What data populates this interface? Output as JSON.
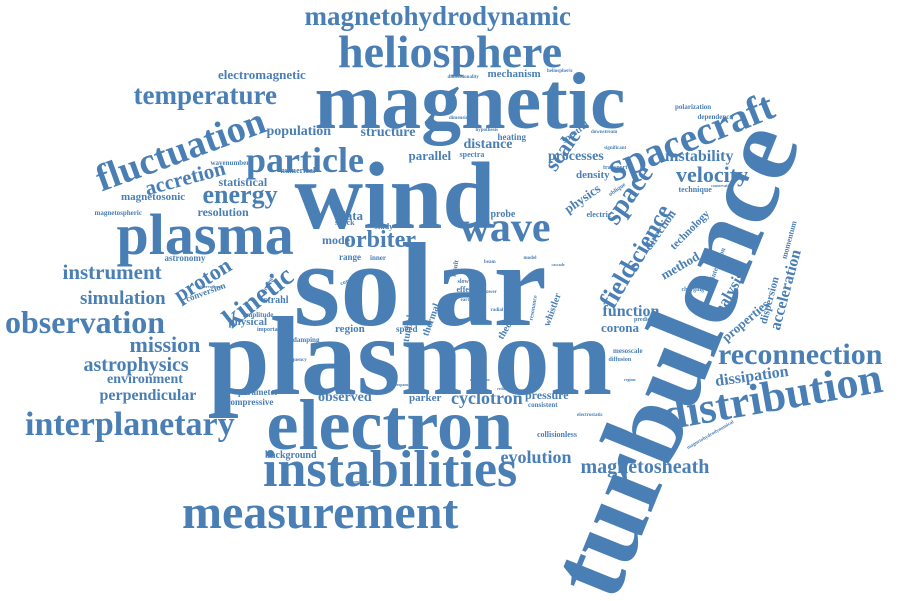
{
  "colors": {
    "word": "#4a7fb5",
    "background": "#ffffff"
  },
  "words": [
    {
      "id": "solar",
      "text": "solar",
      "weight": 120
    },
    {
      "id": "plasmon",
      "text": "plasmon",
      "weight": 112
    },
    {
      "id": "turbulence",
      "text": "turbulence",
      "weight": 110
    },
    {
      "id": "wind",
      "text": "wind",
      "weight": 95
    },
    {
      "id": "magnetic",
      "text": "magnetic",
      "weight": 80
    },
    {
      "id": "electron",
      "text": "electron",
      "weight": 72
    },
    {
      "id": "plasma",
      "text": "plasma",
      "weight": 58
    },
    {
      "id": "instabilities",
      "text": "instabilities",
      "weight": 52
    },
    {
      "id": "measurement",
      "text": "measurement",
      "weight": 48
    },
    {
      "id": "heliosphere",
      "text": "heliosphere",
      "weight": 46
    },
    {
      "id": "distribution",
      "text": "distribution",
      "weight": 44
    },
    {
      "id": "wave",
      "text": "wave",
      "weight": 42
    },
    {
      "id": "spacecraft",
      "text": "spacecraft",
      "weight": 40
    },
    {
      "id": "fluctuation",
      "text": "fluctuation",
      "weight": 38
    },
    {
      "id": "particle",
      "text": "particle",
      "weight": 36
    },
    {
      "id": "interplanetary",
      "text": "interplanetary",
      "weight": 34
    },
    {
      "id": "observation",
      "text": "observation",
      "weight": 32
    },
    {
      "id": "reconnection",
      "text": "reconnection",
      "weight": 30
    },
    {
      "id": "temperature",
      "text": "temperature",
      "weight": 28
    },
    {
      "id": "magnetohydrodynamic",
      "text": "magnetohydrodynamic",
      "weight": 28
    },
    {
      "id": "kinetic",
      "text": "kinetic",
      "weight": 28
    },
    {
      "id": "energy",
      "text": "energy",
      "weight": 26
    },
    {
      "id": "space",
      "text": "space",
      "weight": 26
    },
    {
      "id": "field",
      "text": "field",
      "weight": 26
    },
    {
      "id": "science",
      "text": "science",
      "weight": 24
    },
    {
      "id": "proton",
      "text": "proton",
      "weight": 24
    },
    {
      "id": "orbiter",
      "text": "orbiter",
      "weight": 24
    },
    {
      "id": "accretion",
      "text": "accretion",
      "weight": 22
    },
    {
      "id": "velocity",
      "text": "velocity",
      "weight": 22
    },
    {
      "id": "scale",
      "text": "scale",
      "weight": 22
    },
    {
      "id": "instrument",
      "text": "instrument",
      "weight": 22
    },
    {
      "id": "mission",
      "text": "mission",
      "weight": 22
    },
    {
      "id": "magnetosheath",
      "text": "magnetosheath",
      "weight": 20
    },
    {
      "id": "astrophysics",
      "text": "astrophysics",
      "weight": 20
    },
    {
      "id": "simulation",
      "text": "simulation",
      "weight": 20
    },
    {
      "id": "cyclotron",
      "text": "cyclotron",
      "weight": 18
    },
    {
      "id": "evolution",
      "text": "evolution",
      "weight": 18
    },
    {
      "id": "instability",
      "text": "instability",
      "weight": 16
    },
    {
      "id": "function",
      "text": "function",
      "weight": 16
    },
    {
      "id": "acceleration",
      "text": "acceleration",
      "weight": 16
    },
    {
      "id": "analysis",
      "text": "analysis",
      "weight": 16
    },
    {
      "id": "dissipation",
      "text": "dissipation",
      "weight": 16
    },
    {
      "id": "perpendicular",
      "text": "perpendicular",
      "weight": 16
    },
    {
      "id": "environment",
      "text": "environment",
      "weight": 15
    },
    {
      "id": "electromagnetic",
      "text": "electromagnetic",
      "weight": 14
    },
    {
      "id": "population",
      "text": "population",
      "weight": 14
    },
    {
      "id": "structure",
      "text": "structure",
      "weight": 14
    },
    {
      "id": "distance",
      "text": "distance",
      "weight": 14
    },
    {
      "id": "processes",
      "text": "processes",
      "weight": 14
    },
    {
      "id": "observed",
      "text": "observed",
      "weight": 14
    },
    {
      "id": "statistical",
      "text": "statistical",
      "weight": 13
    },
    {
      "id": "resolution",
      "text": "resolution",
      "weight": 13
    },
    {
      "id": "magnetosonic",
      "text": "magnetosonic",
      "weight": 12
    },
    {
      "id": "parallel",
      "text": "parallel",
      "weight": 13
    },
    {
      "id": "physics",
      "text": "physics",
      "weight": 13
    },
    {
      "id": "physical",
      "text": "physical",
      "weight": 12
    },
    {
      "id": "parker",
      "text": "parker",
      "weight": 12
    },
    {
      "id": "method",
      "text": "method",
      "weight": 13
    },
    {
      "id": "direction",
      "text": "direction",
      "weight": 12
    },
    {
      "id": "technology",
      "text": "technology",
      "weight": 11
    },
    {
      "id": "properties",
      "text": "properties",
      "weight": 13
    },
    {
      "id": "corona",
      "text": "corona",
      "weight": 13
    },
    {
      "id": "data",
      "text": "data",
      "weight": 13
    },
    {
      "id": "pressure",
      "text": "pressure",
      "weight": 12
    },
    {
      "id": "mechanism",
      "text": "mechanism",
      "weight": 11
    },
    {
      "id": "density",
      "text": "density",
      "weight": 11
    },
    {
      "id": "region",
      "text": "region",
      "weight": 11
    },
    {
      "id": "mode",
      "text": "mode",
      "weight": 12
    },
    {
      "id": "heating",
      "text": "heating",
      "weight": 10
    },
    {
      "id": "spectral",
      "text": "spectral",
      "weight": 10
    },
    {
      "id": "momentum",
      "text": "momentum",
      "weight": 9
    },
    {
      "id": "background",
      "text": "background",
      "weight": 10
    },
    {
      "id": "parameter",
      "text": "parameter",
      "weight": 10
    },
    {
      "id": "compressive",
      "text": "compressive",
      "weight": 10
    },
    {
      "id": "thermal",
      "text": "thermal",
      "weight": 10
    },
    {
      "id": "turbulent",
      "text": "turbulent",
      "weight": 10
    },
    {
      "id": "whistler",
      "text": "whistler",
      "weight": 10
    },
    {
      "id": "strahl",
      "text": "strahl",
      "weight": 10
    },
    {
      "id": "collisionless",
      "text": "collisionless",
      "weight": 8
    },
    {
      "id": "mesoscale",
      "text": "mesoscale",
      "weight": 7
    },
    {
      "id": "electric",
      "text": "electric",
      "weight": 8
    },
    {
      "id": "speed",
      "text": "speed",
      "weight": 9
    },
    {
      "id": "effect",
      "text": "effect",
      "weight": 8
    },
    {
      "id": "probe",
      "text": "probe",
      "weight": 10
    },
    {
      "id": "spectra",
      "text": "spectra",
      "weight": 8
    },
    {
      "id": "astronomy",
      "text": "astronomy",
      "weight": 9
    },
    {
      "id": "conversion",
      "text": "conversion",
      "weight": 9
    },
    {
      "id": "numerical",
      "text": "numerical",
      "weight": 8
    },
    {
      "id": "technique",
      "text": "technique",
      "weight": 8
    },
    {
      "id": "dispersion",
      "text": "dispersion",
      "weight": 11
    },
    {
      "id": "interaction",
      "text": "interaction",
      "weight": 7
    },
    {
      "id": "dependence",
      "text": "dependence",
      "weight": 7
    },
    {
      "id": "polarization",
      "text": "polarization",
      "weight": 7
    },
    {
      "id": "theory",
      "text": "theory",
      "weight": 10
    },
    {
      "id": "range",
      "text": "range",
      "weight": 9
    },
    {
      "id": "shock",
      "text": "shock",
      "weight": 8
    },
    {
      "id": "study",
      "text": "study",
      "weight": 8
    },
    {
      "id": "wavenumber",
      "text": "wavenumber",
      "weight": 7
    },
    {
      "id": "amplitude",
      "text": "amplitude",
      "weight": 7
    },
    {
      "id": "damping",
      "text": "damping",
      "weight": 7
    },
    {
      "id": "consistent",
      "text": "consistent",
      "weight": 7
    },
    {
      "id": "prediction",
      "text": "prediction",
      "weight": 6
    },
    {
      "id": "diffusion",
      "text": "diffusion",
      "weight": 6
    },
    {
      "id": "charging",
      "text": "charging",
      "weight": 6
    },
    {
      "id": "important",
      "text": "important",
      "weight": 6
    },
    {
      "id": "dimensional",
      "text": "dimensional",
      "weight": 5
    },
    {
      "id": "downstream",
      "text": "downstream",
      "weight": 5
    },
    {
      "id": "heliospheric",
      "text": "heliospheric",
      "weight": 5
    },
    {
      "id": "electrostatic",
      "text": "electrostatic",
      "weight": 5
    },
    {
      "id": "frequency",
      "text": "frequency",
      "weight": 5
    },
    {
      "id": "dimensionality",
      "text": "dimensionality",
      "weight": 5
    },
    {
      "id": "hypothesis",
      "text": "hypothesis",
      "weight": 5
    },
    {
      "id": "inner",
      "text": "inner",
      "weight": 7
    },
    {
      "id": "oblique",
      "text": "oblique",
      "weight": 6
    },
    {
      "id": "transport",
      "text": "transport",
      "weight": 6
    },
    {
      "id": "earth",
      "text": "earth",
      "weight": 5
    },
    {
      "id": "power",
      "text": "power",
      "weight": 5
    },
    {
      "id": "coronal",
      "text": "coronal",
      "weight": 6
    },
    {
      "id": "magnetohydrodynamical",
      "text": "magnetohydrodynamical",
      "weight": 5
    },
    {
      "id": "significant",
      "text": "significant",
      "weight": 5
    },
    {
      "id": "conservation",
      "text": "conservation",
      "weight": 4
    },
    {
      "id": "astrophysical",
      "text": "astrophysical",
      "weight": 4
    },
    {
      "id": "magnetospheric",
      "text": "magnetospheric",
      "weight": 7
    },
    {
      "id": "observational",
      "text": "observational",
      "weight": 4
    },
    {
      "id": "beam",
      "text": "beam",
      "weight": 5
    },
    {
      "id": "model",
      "text": "model",
      "weight": 5
    },
    {
      "id": "slow",
      "text": "slow",
      "weight": 6
    },
    {
      "id": "result",
      "text": "result",
      "weight": 7
    },
    {
      "id": "cascade",
      "text": "cascade",
      "weight": 4
    },
    {
      "id": "resonance",
      "text": "resonance",
      "weight": 6
    },
    {
      "id": "radial",
      "text": "radial",
      "weight": 5
    },
    {
      "id": "present",
      "text": "present",
      "weight": 6
    },
    {
      "id": "dynamic",
      "text": "dynamic",
      "weight": 5
    },
    {
      "id": "exploration",
      "text": "exploration",
      "weight": 4
    },
    {
      "id": "reduction",
      "text": "reduction",
      "weight": 4
    },
    {
      "id": "expansion",
      "text": "expansion",
      "weight": 4
    },
    {
      "id": "regime",
      "text": "regime",
      "weight": 4
    }
  ]
}
